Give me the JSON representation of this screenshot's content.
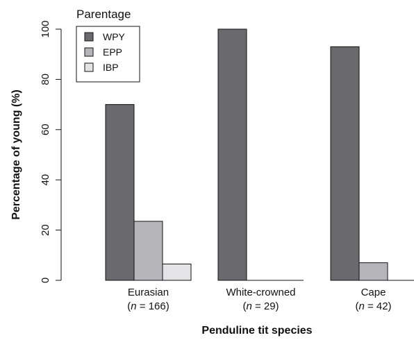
{
  "chart_data": {
    "type": "bar",
    "title": "",
    "xlabel": "Penduline tit species",
    "ylabel": "Percentage of young (%)",
    "ylim": [
      0,
      100
    ],
    "yticks": [
      "0",
      "20",
      "40",
      "60",
      "80",
      "100"
    ],
    "grid": false,
    "categories": [
      "Eurasian",
      "White-crowned",
      "Cape"
    ],
    "sample_sizes": [
      "(n = 166)",
      "(n = 29)",
      "(n = 42)"
    ],
    "legend": {
      "title": "Parentage",
      "placement": "top-left"
    },
    "series": [
      {
        "name": "WPY",
        "color": "#6a6a6e",
        "values": [
          70,
          100,
          93
        ]
      },
      {
        "name": "EPP",
        "color": "#b6b6ba",
        "values": [
          23.5,
          0,
          7
        ]
      },
      {
        "name": "IBP",
        "color": "#e4e4e6",
        "values": [
          6.5,
          0,
          0
        ]
      }
    ]
  }
}
